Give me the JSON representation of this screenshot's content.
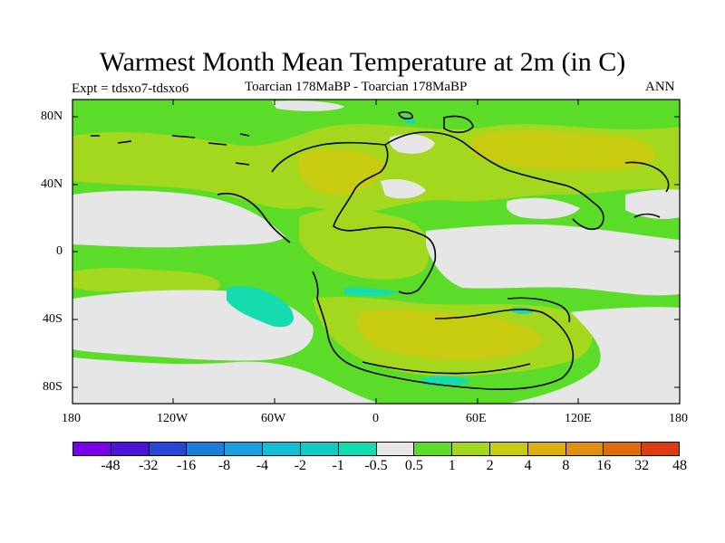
{
  "title": "Warmest Month Mean Temperature at 2m (in C)",
  "left_label": "Expt = tdsxo7-tdsxo6",
  "center_label": "Toarcian 178MaBP - Toarcian 178MaBP",
  "right_label": "ANN",
  "axes": {
    "lat_labels": [
      "80N",
      "40N",
      "0",
      "40S",
      "80S"
    ],
    "lon_labels": [
      "180",
      "120W",
      "60W",
      "0",
      "60E",
      "120E",
      "180"
    ],
    "lon_range": [
      -180,
      180
    ],
    "lat_range": [
      -90,
      90
    ]
  },
  "colorbar": {
    "labels": [
      "-48",
      "-32",
      "-16",
      "-8",
      "-4",
      "-2",
      "-1",
      "-0.5",
      "0.5",
      "1",
      "2",
      "4",
      "8",
      "16",
      "32",
      "48"
    ],
    "colors": [
      "#7a00e6",
      "#4a15d9",
      "#2a44d6",
      "#1a7fdc",
      "#1a9fe0",
      "#12bfd6",
      "#12ccc4",
      "#14dcae",
      "#e6e6e6",
      "#5bdc28",
      "#a3d81e",
      "#c7cc10",
      "#dcb010",
      "#e09010",
      "#e06c10",
      "#dc3c10"
    ]
  },
  "colors": {
    "neutral": "#e6e6e6",
    "c1": "#5bdc28",
    "c2": "#a3d81e",
    "c4": "#c7cc10",
    "cyan": "#14dcae",
    "coast": "#000000"
  }
}
